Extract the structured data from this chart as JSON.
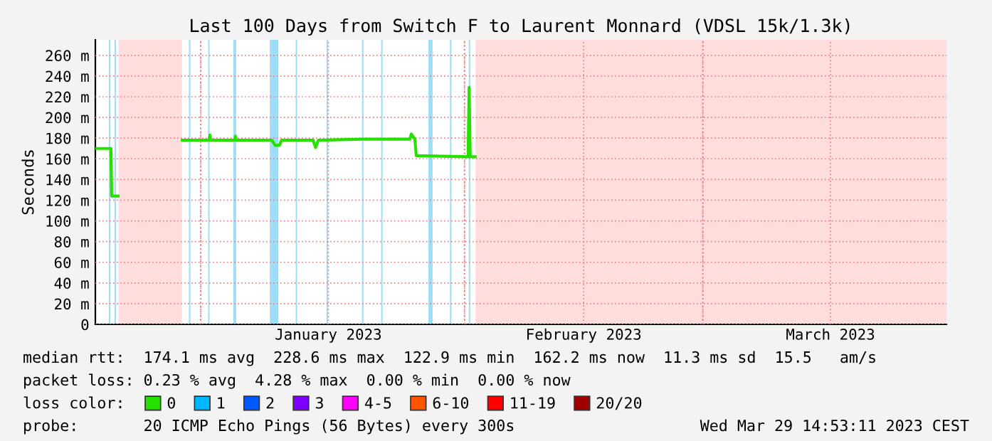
{
  "chart_data": {
    "type": "line",
    "title": "Last 100 Days from Switch F to Laurent Monnard (VDSL 15k/1.3k)",
    "ylabel": "Seconds",
    "x": [
      "2022-12-19T15:00",
      "2022-12-21T11:00",
      "2022-12-21T13:00",
      "2022-12-22T07:00",
      "2022-12-25T00:00",
      "2022-12-29T20:00",
      "2023-01-02T00:00",
      "2023-01-02T02:00",
      "2023-01-02T04:00",
      "2023-01-05T00:00",
      "2023-01-05T02:00",
      "2023-01-05T04:00",
      "2023-01-09T09:00",
      "2023-01-09T18:00",
      "2023-01-10T06:00",
      "2023-01-10T12:00",
      "2023-01-14T05:00",
      "2023-01-14T12:00",
      "2023-01-14T20:00",
      "2023-01-20T00:00",
      "2023-01-25T14:00",
      "2023-01-25T18:00",
      "2023-01-26T04:00",
      "2023-01-26T08:00",
      "2023-02-01T10:00",
      "2023-02-01T13:00",
      "2023-02-01T16:00",
      "2023-02-02T06:00"
    ],
    "series": [
      {
        "name": "0",
        "color": "#26e000",
        "values": [
          170,
          170,
          124,
          124,
          null,
          178,
          178,
          183,
          178,
          178,
          182,
          178,
          178,
          173,
          173,
          178,
          178,
          171,
          178,
          179,
          179,
          184,
          179,
          163,
          162,
          229,
          162,
          162
        ]
      },
      {
        "name": "1",
        "color": "#00b8ff",
        "values": [
          null,
          null,
          null,
          null,
          null,
          null,
          null,
          null,
          null,
          null,
          null,
          null,
          null,
          null,
          null,
          null,
          null,
          null,
          null,
          null,
          null,
          null,
          null,
          null,
          null,
          null,
          null,
          null
        ]
      },
      {
        "name": "2",
        "color": "#0059ff",
        "values": [
          null,
          null,
          null,
          null,
          null,
          null,
          null,
          null,
          null,
          null,
          null,
          null,
          null,
          null,
          null,
          null,
          null,
          null,
          null,
          null,
          null,
          null,
          null,
          null,
          null,
          null,
          null,
          null
        ]
      },
      {
        "name": "3",
        "color": "#7e00ff",
        "values": [
          null,
          null,
          null,
          null,
          null,
          null,
          null,
          null,
          null,
          null,
          null,
          null,
          null,
          null,
          null,
          null,
          null,
          null,
          null,
          null,
          null,
          null,
          null,
          null,
          null,
          null,
          null,
          null
        ]
      },
      {
        "name": "4-5",
        "color": "#ff00ff",
        "values": [
          null,
          null,
          null,
          null,
          null,
          null,
          null,
          null,
          null,
          null,
          null,
          null,
          null,
          null,
          null,
          null,
          null,
          null,
          null,
          null,
          null,
          null,
          null,
          null,
          null,
          null,
          null,
          null
        ]
      },
      {
        "name": "6-10",
        "color": "#ff5500",
        "values": [
          null,
          null,
          null,
          null,
          null,
          null,
          null,
          null,
          null,
          null,
          null,
          null,
          null,
          null,
          null,
          null,
          null,
          null,
          null,
          null,
          null,
          null,
          null,
          null,
          null,
          null,
          null,
          null
        ]
      },
      {
        "name": "11-19",
        "color": "#ff0000",
        "values": [
          null,
          null,
          null,
          null,
          null,
          null,
          null,
          null,
          null,
          null,
          null,
          null,
          null,
          null,
          null,
          null,
          null,
          null,
          null,
          null,
          null,
          null,
          null,
          null,
          null,
          null,
          null,
          null
        ]
      },
      {
        "name": "20/20",
        "color": "#a10000",
        "values": [
          null,
          null,
          null,
          null,
          null,
          null,
          null,
          null,
          null,
          null,
          null,
          null,
          null,
          null,
          null,
          null,
          null,
          null,
          null,
          null,
          null,
          null,
          null,
          null,
          null,
          null,
          null,
          null
        ]
      }
    ],
    "legend_title": "loss color:",
    "legend": "bottom",
    "xlim": [
      "2022-12-19T15:00",
      "2023-03-29T15:00"
    ],
    "xticks": [
      {
        "value": "2023-01-01",
        "label": null
      },
      {
        "value": "2023-01-16",
        "label": "January 2023"
      },
      {
        "value": "2023-02-01",
        "label": null
      },
      {
        "value": "2023-02-15",
        "label": "February 2023"
      },
      {
        "value": "2023-03-01",
        "label": null
      },
      {
        "value": "2023-03-16",
        "label": "March 2023"
      }
    ],
    "ylim": [
      0,
      275
    ],
    "yticks": [
      0,
      {
        "value": 20,
        "label": "20 m"
      },
      {
        "value": 40,
        "label": "40 m"
      },
      {
        "value": 60,
        "label": "60 m"
      },
      {
        "value": 80,
        "label": "80 m"
      },
      {
        "value": 100,
        "label": "100 m"
      },
      {
        "value": 120,
        "label": "120 m"
      },
      {
        "value": 140,
        "label": "140 m"
      },
      {
        "value": 160,
        "label": "160 m"
      },
      {
        "value": 180,
        "label": "180 m"
      },
      {
        "value": 200,
        "label": "200 m"
      },
      {
        "value": 220,
        "label": "220 m"
      },
      {
        "value": 240,
        "label": "240 m"
      },
      {
        "value": 260,
        "label": "260 m"
      }
    ],
    "grid": true,
    "bands": [
      {
        "axis": "x",
        "from": "2022-12-22T08:00",
        "to": "2022-12-29T19:00",
        "color": "#ffdddd"
      },
      {
        "axis": "x",
        "from": "2023-02-02T07:00",
        "to": "2023-03-29T15:00",
        "color": "#ffdddd"
      },
      {
        "axis": "x",
        "from": "2022-12-21T05:00",
        "to": "2022-12-21T09:00",
        "color": "#9fdcf5"
      },
      {
        "axis": "x",
        "from": "2022-12-21T21:00",
        "to": "2022-12-22T01:00",
        "color": "#9fdcf5"
      },
      {
        "axis": "x",
        "from": "2022-12-30T15:00",
        "to": "2022-12-30T19:00",
        "color": "#9fdcf5"
      },
      {
        "axis": "x",
        "from": "2023-01-01T21:00",
        "to": "2023-01-02T01:00",
        "color": "#9fdcf5"
      },
      {
        "axis": "x",
        "from": "2023-01-04T20:00",
        "to": "2023-01-05T04:00",
        "color": "#9fdcf5"
      },
      {
        "axis": "x",
        "from": "2023-01-09T03:00",
        "to": "2023-01-10T03:00",
        "color": "#9fdcf5"
      },
      {
        "axis": "x",
        "from": "2023-01-12T04:00",
        "to": "2023-01-12T08:00",
        "color": "#9fdcf5"
      },
      {
        "axis": "x",
        "from": "2023-01-15T19:00",
        "to": "2023-01-15T23:00",
        "color": "#9fdcf5"
      },
      {
        "axis": "x",
        "from": "2023-01-19T23:00",
        "to": "2023-01-20T03:00",
        "color": "#9fdcf5"
      },
      {
        "axis": "x",
        "from": "2023-01-22T05:00",
        "to": "2023-01-22T09:00",
        "color": "#9fdcf5"
      },
      {
        "axis": "x",
        "from": "2023-01-27T18:00",
        "to": "2023-01-28T06:00",
        "color": "#9fdcf5"
      },
      {
        "axis": "x",
        "from": "2023-01-30T07:00",
        "to": "2023-01-30T11:00",
        "color": "#9fdcf5"
      },
      {
        "axis": "x",
        "from": "2023-02-01T12:00",
        "to": "2023-02-01T16:00",
        "color": "#9fdcf5"
      }
    ],
    "annotations": [
      "median rtt:  174.1 ms avg  228.6 ms max  122.9 ms min  162.2 ms now  11.3 ms sd  15.5   am/s",
      "packet loss: 0.23 % avg  4.28 % max  0.00 % min  0.00 % now",
      "probe:       20 ICMP Echo Pings (56 Bytes) every 300s",
      "Wed Mar 29 14:53:11 2023 CEST"
    ]
  }
}
